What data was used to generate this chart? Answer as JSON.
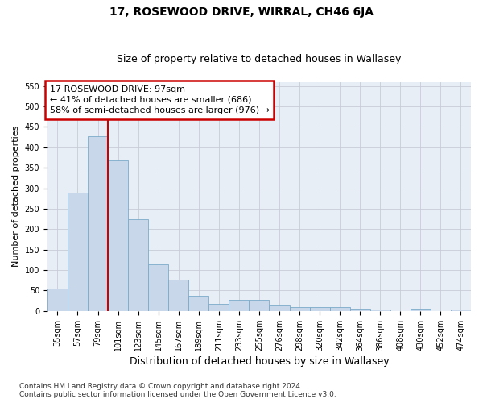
{
  "title": "17, ROSEWOOD DRIVE, WIRRAL, CH46 6JA",
  "subtitle": "Size of property relative to detached houses in Wallasey",
  "xlabel": "Distribution of detached houses by size in Wallasey",
  "ylabel": "Number of detached properties",
  "footnote": "Contains HM Land Registry data © Crown copyright and database right 2024.\nContains public sector information licensed under the Open Government Licence v3.0.",
  "categories": [
    "35sqm",
    "57sqm",
    "79sqm",
    "101sqm",
    "123sqm",
    "145sqm",
    "167sqm",
    "189sqm",
    "211sqm",
    "233sqm",
    "255sqm",
    "276sqm",
    "298sqm",
    "320sqm",
    "342sqm",
    "364sqm",
    "386sqm",
    "408sqm",
    "430sqm",
    "452sqm",
    "474sqm"
  ],
  "values": [
    55,
    290,
    428,
    368,
    224,
    113,
    76,
    38,
    18,
    27,
    27,
    14,
    9,
    9,
    10,
    5,
    4,
    0,
    5,
    0,
    4
  ],
  "bar_color": "#c8d8ea",
  "bar_edge_color": "#7aaac8",
  "grid_color": "#c8ccd8",
  "annotation_line1": "17 ROSEWOOD DRIVE: 97sqm",
  "annotation_line2": "← 41% of detached houses are smaller (686)",
  "annotation_line3": "58% of semi-detached houses are larger (976) →",
  "annotation_box_color": "#ffffff",
  "annotation_box_edge_color": "#cc0000",
  "vline_color": "#cc0000",
  "vline_x_index": 2,
  "ylim": [
    0,
    560
  ],
  "yticks": [
    0,
    50,
    100,
    150,
    200,
    250,
    300,
    350,
    400,
    450,
    500,
    550
  ],
  "background_color": "#e8eef5",
  "title_fontsize": 10,
  "subtitle_fontsize": 9,
  "xlabel_fontsize": 9,
  "ylabel_fontsize": 8,
  "tick_fontsize": 7,
  "annotation_fontsize": 8,
  "footnote_fontsize": 6.5
}
